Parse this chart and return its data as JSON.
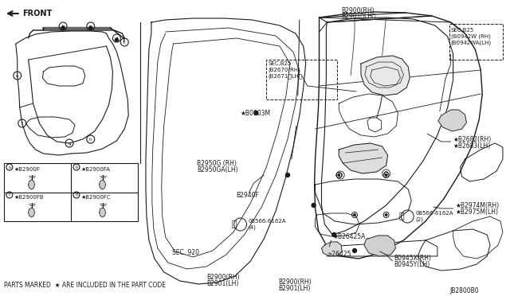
{
  "bg_color": "#ffffff",
  "line_color": "#1a1a1a",
  "gray": "#888888",
  "diagram_id": "JB2800B0",
  "footer_text": "PARTS MARKED  ★ ARE INCLUDED IN THE PART CODE",
  "footer_parts1": "B2900(RH)",
  "footer_parts2": "B2901(LH)",
  "lbl_front": "FRONT",
  "lbl_b2900_top": "B2900(RH)",
  "lbl_b2901_top": "B2901〈LH〉",
  "lbl_sec825L": "SEC.B25\n(B2670(RH)\n(B2671〈LH〉",
  "lbl_sec825R": "SEC.B25\n(B0942W (RH)\n(B0942WA(LH)",
  "lbl_b2950g": "B2950G (RH)\nB2950GA(LH)",
  "lbl_b2940f": "B2940F",
  "lbl_b0903m": "★B0903M",
  "lbl_bolt4": "Ⓑ08566-6162A\n(4)",
  "lbl_bolt2": "Ⓑ08566-6162A\n(2)",
  "lbl_b2682": "★B2682(RH)\n★B2683(LH)",
  "lbl_b2974m": "★B2974M(RH)\n★B2975M(LH)",
  "lbl_b0945": "B0945X(RH)\nB0945Y(LH)",
  "lbl_b26425a": "★B26425A",
  "lbl_b26425": "≥26425",
  "lbl_sec920": "SEC. 920",
  "lbl_b2900bot1": "B2900(RH)",
  "lbl_b2900bot2": "B2901(LH)",
  "lbl_a": "★B2900F",
  "lbl_b": "★B2900FA",
  "lbl_c": "★B2900FB",
  "lbl_d": "★B2900FC"
}
